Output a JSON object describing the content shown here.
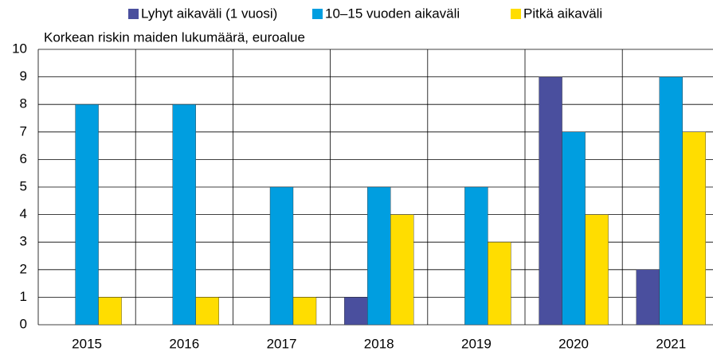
{
  "chart_data": {
    "type": "bar",
    "subtitle": "Korkean riskin maiden lukumäärä, euroalue",
    "categories": [
      "2015",
      "2016",
      "2017",
      "2018",
      "2019",
      "2020",
      "2021"
    ],
    "series": [
      {
        "name": "Lyhyt aikaväli (1 vuosi)",
        "color": "#4a4f9e",
        "values": [
          0,
          0,
          0,
          1,
          0,
          9,
          2
        ]
      },
      {
        "name": "10–15 vuoden aikaväli",
        "color": "#009ee0",
        "values": [
          8,
          8,
          5,
          5,
          5,
          7,
          9
        ]
      },
      {
        "name": "Pitkä aikaväli",
        "color": "#ffdd00",
        "values": [
          1,
          1,
          1,
          4,
          3,
          4,
          7
        ]
      }
    ],
    "ylim": [
      0,
      10
    ],
    "yticks": [
      0,
      1,
      2,
      3,
      4,
      5,
      6,
      7,
      8,
      9,
      10
    ],
    "grid": true,
    "legend": "top"
  }
}
